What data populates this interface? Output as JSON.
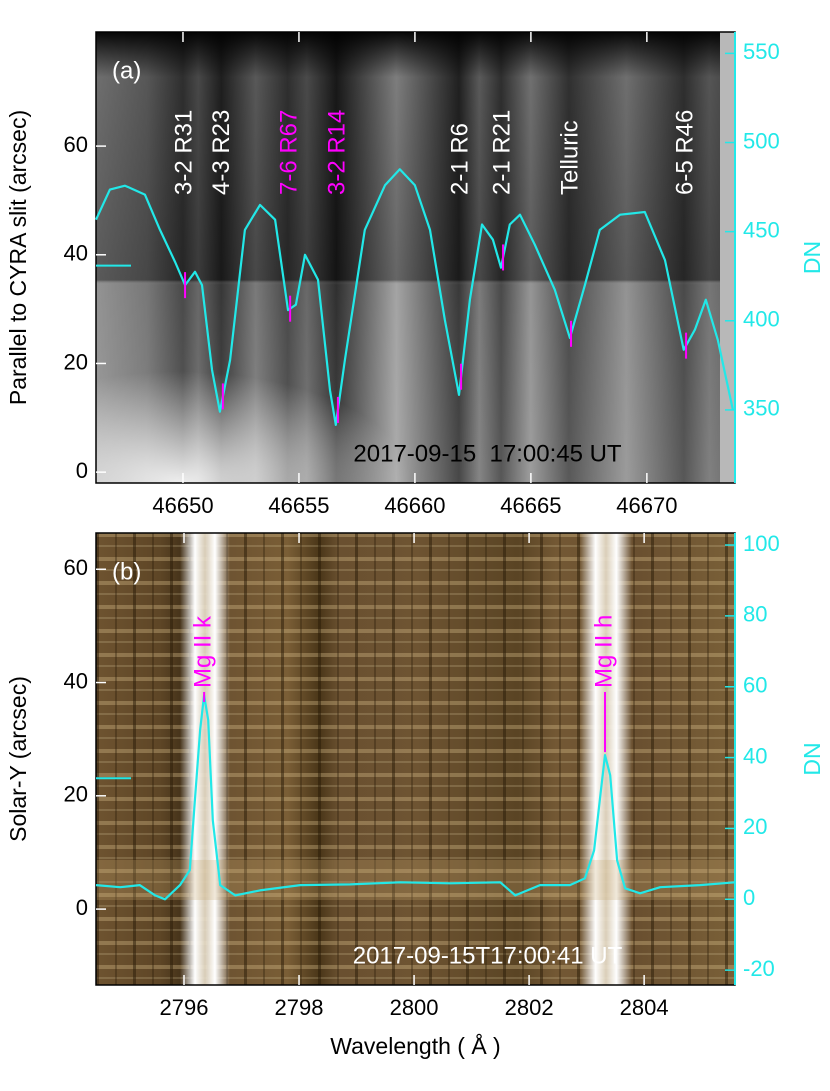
{
  "chart_data": [
    {
      "type": "line",
      "panel_label": "(a)",
      "timestamp": "2017-09-15  17:00:45 UT",
      "ylabel": "Parallel to CYRA slit (arcsec)",
      "y2label": "DN",
      "xlim": [
        46646.25,
        46673.8
      ],
      "xticks": [
        46650,
        46655,
        46660,
        46665,
        46670
      ],
      "ylim": [
        -2,
        81
      ],
      "yticks": [
        0,
        20,
        40,
        60
      ],
      "y2lim": [
        309,
        562
      ],
      "y2ticks": [
        350,
        400,
        450,
        500,
        550
      ],
      "slit_marker": 38,
      "x": [
        46646.25,
        46646.85,
        46647.5,
        46648.36,
        46649.01,
        46649.66,
        46650.09,
        46650.52,
        46650.82,
        46651.25,
        46651.59,
        46652.03,
        46652.67,
        46653.32,
        46653.97,
        46654.53,
        46654.87,
        46655.26,
        46655.82,
        46656.34,
        46656.59,
        46656.98,
        46657.84,
        46658.71,
        46659.35,
        46660,
        46660.65,
        46661.29,
        46661.9,
        46662.37,
        46662.89,
        46663.36,
        46663.71,
        46664.09,
        46664.53,
        46665.17,
        46666.03,
        46666.68,
        46667.33,
        46667.97,
        46668.84,
        46669.91,
        46670.78,
        46671.59,
        46672.07,
        46672.54,
        46673.06,
        46673.71
      ],
      "series": [
        {
          "color": "#22e8e8",
          "axis": "y2",
          "values": [
            456.7,
            473.6,
            475.8,
            470.8,
            451,
            433,
            420,
            427.5,
            420,
            372.5,
            349,
            378,
            451,
            465,
            456.7,
            406,
            409,
            437,
            423,
            361,
            341.6,
            378,
            451,
            476,
            485,
            476,
            451,
            400.6,
            358.4,
            411.8,
            454,
            445.5,
            429.8,
            454,
            459.5,
            442.7,
            417.4,
            390.4,
            420,
            451,
            459.5,
            461,
            434,
            383.7,
            395,
            411.8,
            389.3,
            350
          ]
        }
      ],
      "annotations": [
        {
          "text": "3-2 R31",
          "x": 46650.09,
          "color": "#ffffff"
        },
        {
          "text": "4-3 R23",
          "x": 46651.72,
          "color": "#ffffff"
        },
        {
          "text": "7-6 R67",
          "x": 46654.62,
          "color": "#ff00ff"
        },
        {
          "text": "3-2 R14",
          "x": 46656.68,
          "color": "#ff00ff"
        },
        {
          "text": "2-1 R6",
          "x": 46661.99,
          "color": "#ffffff"
        },
        {
          "text": "2-1 R21",
          "x": 46663.8,
          "color": "#ffffff"
        },
        {
          "text": "Telluric",
          "x": 46666.73,
          "color": "#ffffff"
        },
        {
          "text": "6-5 R46",
          "x": 46671.69,
          "color": "#ffffff"
        }
      ]
    },
    {
      "type": "line",
      "panel_label": "(b)",
      "timestamp": "2017-09-15T17:00:41 UT",
      "ylabel": "Solar-Y (arcsec)",
      "y2label": "DN",
      "xlabel": "Wavelength ( Å )",
      "xlim": [
        2794.47,
        2805.58
      ],
      "xticks": [
        2796,
        2798,
        2800,
        2802,
        2804
      ],
      "ylim": [
        -13.4,
        66.4
      ],
      "yticks": [
        0,
        20,
        40,
        60
      ],
      "y2lim": [
        -24.2,
        103.4
      ],
      "y2ticks": [
        -20,
        0,
        20,
        40,
        60,
        80,
        100
      ],
      "slit_marker": 23.1,
      "x": [
        2794.47,
        2794.89,
        2795.23,
        2795.5,
        2795.67,
        2795.93,
        2796.1,
        2796.19,
        2796.28,
        2796.35,
        2796.42,
        2796.5,
        2796.63,
        2796.89,
        2797.32,
        2798.02,
        2798.89,
        2799.76,
        2800.63,
        2801.5,
        2801.76,
        2802.19,
        2802.71,
        2802.97,
        2803.13,
        2803.23,
        2803.32,
        2803.41,
        2803.53,
        2803.67,
        2803.93,
        2804.28,
        2804.97,
        2805.58
      ],
      "series": [
        {
          "color": "#22e8e8",
          "axis": "y2",
          "values": [
            4,
            3.4,
            4,
            1.1,
            0,
            4,
            8.2,
            28,
            47.7,
            57.6,
            50.6,
            22.3,
            4,
            1.1,
            2.5,
            4,
            4.2,
            4.8,
            4.5,
            4.8,
            1.1,
            4,
            4,
            5.9,
            13.8,
            28,
            40.7,
            35,
            11,
            3.1,
            1.7,
            3.4,
            4,
            4.8
          ]
        }
      ],
      "annotations": [
        {
          "text": "Mg II k",
          "x": 2796.35,
          "color": "#ff00ff"
        },
        {
          "text": "Mg II h",
          "x": 2803.32,
          "color": "#ff00ff"
        }
      ]
    }
  ]
}
